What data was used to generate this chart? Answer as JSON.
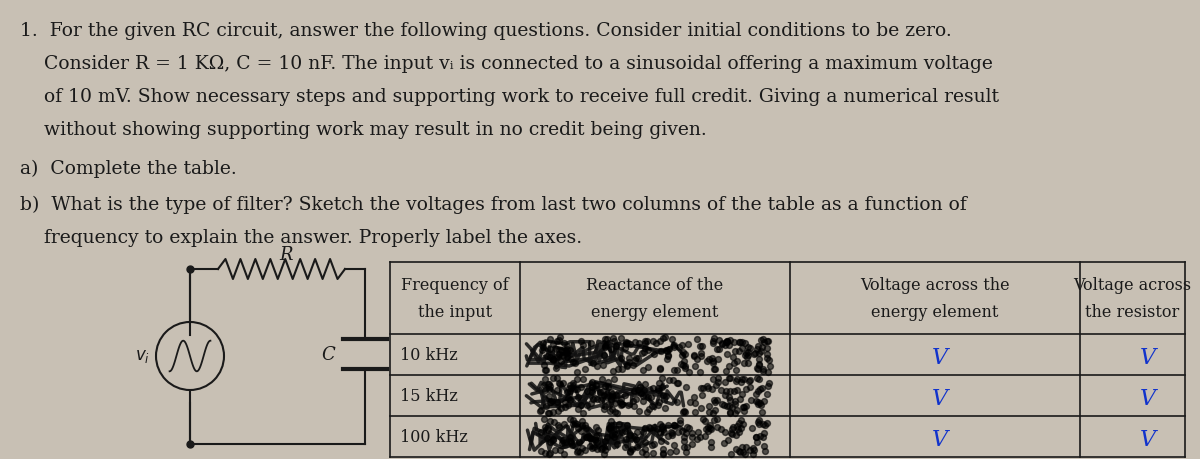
{
  "bg_color": "#c8c0b4",
  "text_color": "#1a1a1a",
  "line1": "1.  For the given RC circuit, answer the following questions. Consider initial conditions to be zero.",
  "line2": "    Consider R = 1 KΩ, C = 10 nF. The input vᵢ is connected to a sinusoidal offering a maximum voltage",
  "line3": "    of 10 mV. Show necessary steps and supporting work to receive full credit. Giving a numerical result",
  "line4": "    without showing supporting work may result in no credit being given.",
  "part_a": "a)  Complete the table.",
  "part_b1": "b)  What is the type of filter? Sketch the voltages from last two columns of the table as a function of",
  "part_b2": "    frequency to explain the answer. Properly label the axes.",
  "col_headers": [
    "Frequency of\nthe input",
    "Reactance of the\nenergy element",
    "Voltage across the\nenergy element",
    "Voltage across\nthe resistor"
  ],
  "freqs": [
    "10 kHz",
    "15 kHz",
    "100 kHz"
  ],
  "font_body": 13.5,
  "font_table_header": 11.5,
  "font_table_data": 11.5
}
